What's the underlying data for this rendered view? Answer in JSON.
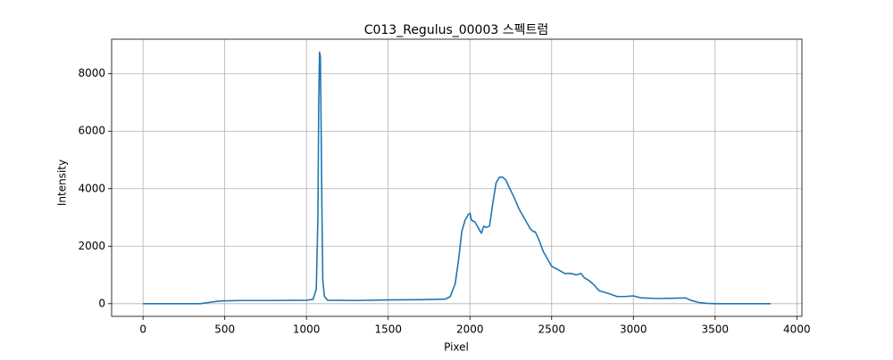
{
  "chart_data": {
    "type": "line",
    "title": "C013_Regulus_00003 스펙트럼",
    "x_label": "Pixel",
    "y_label": "Intensity",
    "x": [
      0,
      350,
      400,
      450,
      500,
      600,
      800,
      1000,
      1040,
      1060,
      1070,
      1075,
      1080,
      1085,
      1090,
      1095,
      1100,
      1110,
      1130,
      1300,
      1500,
      1700,
      1850,
      1880,
      1910,
      1930,
      1950,
      1970,
      1990,
      2000,
      2010,
      2030,
      2050,
      2070,
      2085,
      2100,
      2120,
      2140,
      2160,
      2180,
      2200,
      2220,
      2240,
      2270,
      2300,
      2340,
      2370,
      2390,
      2400,
      2420,
      2450,
      2480,
      2500,
      2550,
      2580,
      2620,
      2650,
      2680,
      2700,
      2730,
      2760,
      2790,
      2820,
      2850,
      2900,
      2950,
      3000,
      3050,
      3150,
      3250,
      3320,
      3350,
      3400,
      3450,
      3500,
      3839
    ],
    "values": [
      0,
      0,
      40,
      80,
      100,
      110,
      110,
      120,
      150,
      500,
      3000,
      7000,
      8750,
      8600,
      6000,
      3000,
      800,
      250,
      120,
      110,
      130,
      140,
      160,
      250,
      700,
      1500,
      2500,
      2900,
      3100,
      3150,
      2900,
      2850,
      2650,
      2450,
      2700,
      2650,
      2700,
      3500,
      4200,
      4400,
      4400,
      4300,
      4050,
      3700,
      3300,
      2900,
      2600,
      2500,
      2500,
      2250,
      1800,
      1500,
      1300,
      1150,
      1050,
      1050,
      1000,
      1050,
      900,
      800,
      650,
      450,
      400,
      350,
      250,
      250,
      270,
      200,
      180,
      190,
      200,
      120,
      40,
      10,
      0,
      0
    ],
    "color": "#1f77b4",
    "xlim": [
      -192,
      4031
    ],
    "ylim": [
      -440,
      9200
    ],
    "xticks": [
      0,
      500,
      1000,
      1500,
      2000,
      2500,
      3000,
      3500,
      4000
    ],
    "yticks": [
      0,
      2000,
      4000,
      6000,
      8000
    ],
    "grid": true
  }
}
